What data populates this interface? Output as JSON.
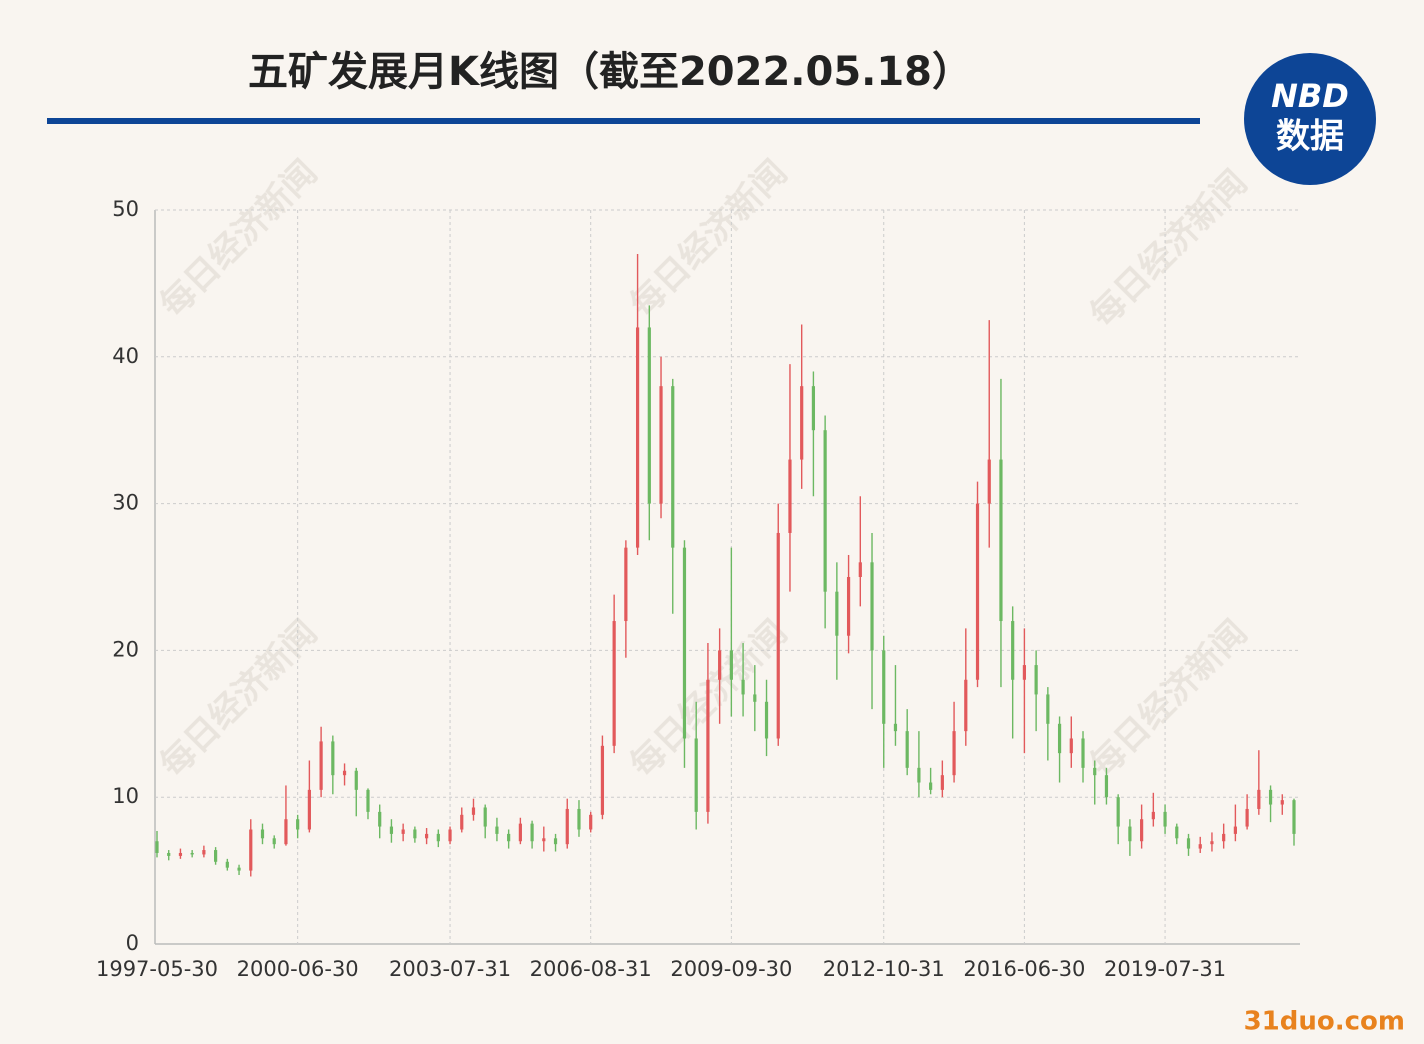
{
  "chart_data": {
    "type": "candlestick",
    "title": "五矿发展月K线图（截至2022.05.18）",
    "logo": {
      "top": "NBD",
      "bottom": "数据"
    },
    "watermark": "每日经济新闻",
    "site_mark": "31duo.com",
    "categories": [
      "1997-05-30",
      null,
      null,
      null,
      null,
      null,
      null,
      null,
      null,
      null,
      null,
      null,
      "2000-06-30",
      null,
      null,
      null,
      null,
      null,
      null,
      null,
      null,
      null,
      null,
      null,
      null,
      "2003-07-31",
      null,
      null,
      null,
      null,
      null,
      null,
      null,
      null,
      null,
      null,
      null,
      "2006-08-31",
      null,
      null,
      null,
      null,
      null,
      null,
      null,
      null,
      null,
      null,
      null,
      "2009-09-30",
      null,
      null,
      null,
      null,
      null,
      null,
      null,
      null,
      null,
      null,
      null,
      null,
      "2012-10-31",
      null,
      null,
      null,
      null,
      null,
      null,
      null,
      null,
      null,
      null,
      null,
      "2016-06-30",
      null,
      null,
      null,
      null,
      null,
      null,
      null,
      null,
      null,
      null,
      null,
      "2019-07-31",
      null,
      null,
      null,
      null,
      null,
      null,
      null,
      null,
      null,
      null,
      null
    ],
    "open": [
      7.0,
      6.2,
      6.0,
      6.2,
      6.1,
      6.4,
      5.6,
      5.2,
      5.0,
      7.8,
      7.2,
      6.8,
      8.5,
      7.8,
      10.5,
      13.8,
      11.5,
      11.8,
      10.5,
      9.0,
      8.0,
      7.5,
      7.8,
      7.2,
      7.5,
      7.0,
      7.8,
      8.8,
      9.3,
      8.0,
      7.5,
      7.0,
      8.2,
      7.0,
      7.2,
      6.8,
      9.2,
      7.8,
      8.8,
      13.5,
      22,
      27,
      42,
      30,
      38,
      27,
      14,
      9,
      18,
      20,
      18,
      17,
      16.5,
      14,
      28,
      33,
      38,
      35,
      24,
      21,
      25,
      26,
      20,
      15,
      14.5,
      12,
      11,
      10.5,
      11.5,
      14.5,
      18,
      30,
      33,
      22,
      18,
      19,
      17,
      15,
      13,
      14,
      12,
      11.5,
      10,
      8,
      7,
      8.5,
      9.0,
      8.0,
      7.2,
      6.5,
      6.8,
      7.0,
      7.5,
      8.0,
      9.2,
      10.5,
      9.5,
      9.8
    ],
    "close": [
      6.2,
      6.0,
      6.2,
      6.1,
      6.4,
      5.6,
      5.2,
      5.0,
      7.8,
      7.2,
      6.8,
      8.5,
      7.8,
      10.5,
      13.8,
      11.5,
      11.8,
      10.5,
      9.0,
      8.0,
      7.5,
      7.8,
      7.2,
      7.5,
      7.0,
      7.8,
      8.8,
      9.3,
      8.0,
      7.5,
      7.0,
      8.2,
      7.0,
      7.2,
      6.8,
      9.2,
      7.8,
      8.8,
      13.5,
      22,
      27,
      42,
      30,
      38,
      27,
      14,
      9,
      18,
      20,
      18,
      17,
      16.5,
      14,
      28,
      33,
      38,
      35,
      24,
      21,
      25,
      26,
      20,
      15,
      14.5,
      12,
      11,
      10.5,
      11.5,
      14.5,
      18,
      30,
      33,
      22,
      18,
      19,
      17,
      15,
      13,
      14,
      12,
      11.5,
      10,
      8,
      7,
      8.5,
      9.0,
      8.0,
      7.2,
      6.5,
      6.8,
      7.0,
      7.5,
      8.0,
      9.2,
      10.5,
      9.5,
      9.8,
      7.5
    ],
    "high": [
      7.7,
      6.4,
      6.5,
      6.4,
      6.7,
      6.6,
      5.8,
      5.4,
      8.5,
      8.2,
      7.4,
      10.8,
      8.8,
      12.5,
      14.8,
      14.2,
      12.3,
      12.0,
      10.6,
      9.5,
      8.5,
      8.2,
      8.0,
      7.9,
      7.8,
      8.0,
      9.3,
      9.9,
      9.5,
      8.6,
      7.8,
      8.6,
      8.4,
      8.0,
      7.5,
      9.9,
      9.8,
      9.0,
      14.2,
      23.8,
      27.5,
      47.0,
      43.5,
      40.0,
      38.5,
      27.5,
      16.5,
      20.5,
      21.5,
      27.0,
      20.5,
      19.0,
      18.0,
      30.0,
      39.5,
      42.2,
      39.0,
      36.0,
      26.0,
      26.5,
      30.5,
      28.0,
      21.0,
      19.0,
      16.0,
      14.5,
      12.0,
      12.5,
      16.5,
      21.5,
      31.5,
      42.5,
      38.5,
      23.0,
      21.5,
      20.0,
      17.5,
      15.5,
      15.5,
      14.5,
      12.5,
      12.0,
      10.2,
      8.5,
      9.5,
      10.3,
      9.5,
      8.2,
      7.5,
      7.3,
      7.6,
      8.2,
      9.5,
      10.2,
      13.2,
      10.8,
      10.2,
      9.9
    ],
    "low": [
      5.9,
      5.7,
      5.8,
      5.9,
      5.9,
      5.4,
      5.0,
      4.7,
      4.6,
      6.8,
      6.5,
      6.7,
      7.2,
      7.6,
      10.0,
      10.2,
      10.8,
      8.7,
      8.5,
      7.2,
      6.9,
      7.0,
      6.9,
      6.8,
      6.6,
      6.8,
      7.6,
      8.4,
      7.2,
      7.0,
      6.5,
      6.8,
      6.5,
      6.3,
      6.3,
      6.5,
      7.3,
      7.6,
      8.5,
      13.0,
      19.5,
      26.5,
      27.5,
      29.0,
      22.5,
      12.0,
      7.8,
      8.2,
      15.0,
      15.5,
      15.5,
      14.5,
      12.8,
      13.5,
      24.0,
      31.0,
      30.5,
      21.5,
      18.0,
      19.8,
      23.0,
      16.0,
      12.0,
      13.5,
      11.5,
      10.0,
      10.2,
      10.0,
      11.0,
      13.5,
      17.5,
      27.0,
      17.5,
      14.0,
      13.0,
      14.5,
      12.5,
      11.0,
      12.0,
      11.0,
      9.5,
      9.5,
      6.8,
      6.0,
      6.5,
      8.0,
      7.5,
      6.8,
      6.0,
      6.2,
      6.3,
      6.5,
      7.0,
      7.8,
      8.8,
      8.3,
      8.8,
      6.7
    ],
    "up_color": "#e2595b",
    "down_color": "#6cb862",
    "ylim": [
      0,
      50
    ],
    "yticks": [
      0,
      10,
      20,
      30,
      40,
      50
    ],
    "grid": true
  }
}
